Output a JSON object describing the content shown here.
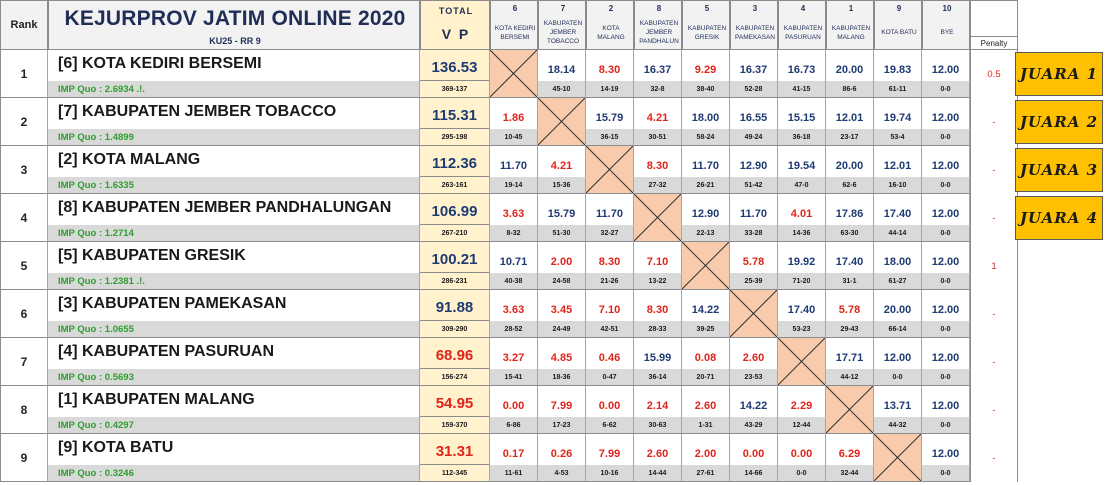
{
  "header": {
    "rank_label": "Rank",
    "title": "KEJURPROV JATIM ONLINE 2020",
    "subtitle": "KU25 - RR 9",
    "total_label": "TOTAL",
    "vp_label": "V P",
    "penalty_label": "Penalty"
  },
  "columns": [
    {
      "num": "6",
      "name1": "KOTA KEDIRI",
      "name2": "BERSEMI"
    },
    {
      "num": "7",
      "name1": "KABUPATEN JEMBER",
      "name2": "TOBACCO"
    },
    {
      "num": "2",
      "name1": "KOTA",
      "name2": "MALANG"
    },
    {
      "num": "8",
      "name1": "KABUPATEN JEMBER",
      "name2": "PANDHALUN"
    },
    {
      "num": "5",
      "name1": "KABUPATEN",
      "name2": "GRESIK"
    },
    {
      "num": "3",
      "name1": "KABUPATEN",
      "name2": "PAMEKASAN"
    },
    {
      "num": "4",
      "name1": "KABUPATEN",
      "name2": "PASURUAN"
    },
    {
      "num": "1",
      "name1": "KABUPATEN",
      "name2": "MALANG"
    },
    {
      "num": "9",
      "name1": "KOTA BATU",
      "name2": ""
    },
    {
      "num": "10",
      "name1": "BYE",
      "name2": ""
    }
  ],
  "rows": [
    {
      "rank": "1",
      "team": "[6] KOTA KEDIRI BERSEMI",
      "quo": "IMP Quo : 2.6934 .!.",
      "vp": "136.53",
      "vp_color": "blue",
      "vp_sub": "369-137",
      "scores": [
        [
          "",
          ""
        ],
        [
          "18.14",
          "45-10"
        ],
        [
          "8.30",
          "14-19"
        ],
        [
          "16.37",
          "32-8"
        ],
        [
          "9.29",
          "38-40"
        ],
        [
          "16.37",
          "52-28"
        ],
        [
          "16.73",
          "41-15"
        ],
        [
          "20.00",
          "86-6"
        ],
        [
          "19.83",
          "61-11"
        ],
        [
          "12.00",
          "0-0"
        ]
      ],
      "colors": [
        "",
        "blue",
        "red",
        "blue",
        "red",
        "blue",
        "blue",
        "blue",
        "blue",
        "blue"
      ],
      "blank": 0,
      "penalty": "0.5",
      "juara": "JUARA 1"
    },
    {
      "rank": "2",
      "team": "[7] KABUPATEN JEMBER TOBACCO",
      "quo": "IMP Quo : 1.4899",
      "vp": "115.31",
      "vp_color": "blue",
      "vp_sub": "295-198",
      "scores": [
        [
          "1.86",
          "10-45"
        ],
        [
          "",
          ""
        ],
        [
          "15.79",
          "36-15"
        ],
        [
          "4.21",
          "30-51"
        ],
        [
          "18.00",
          "58-24"
        ],
        [
          "16.55",
          "49-24"
        ],
        [
          "15.15",
          "36-18"
        ],
        [
          "12.01",
          "23-17"
        ],
        [
          "19.74",
          "53-4"
        ],
        [
          "12.00",
          "0-0"
        ]
      ],
      "colors": [
        "red",
        "",
        "blue",
        "red",
        "blue",
        "blue",
        "blue",
        "blue",
        "blue",
        "blue"
      ],
      "blank": 1,
      "penalty": "-",
      "juara": "JUARA 2"
    },
    {
      "rank": "3",
      "team": "[2] KOTA MALANG",
      "quo": "IMP Quo : 1.6335",
      "vp": "112.36",
      "vp_color": "blue",
      "vp_sub": "263-161",
      "scores": [
        [
          "11.70",
          "19-14"
        ],
        [
          "4.21",
          "15-36"
        ],
        [
          "",
          ""
        ],
        [
          "8.30",
          "27-32"
        ],
        [
          "11.70",
          "26-21"
        ],
        [
          "12.90",
          "51-42"
        ],
        [
          "19.54",
          "47-0"
        ],
        [
          "20.00",
          "62-6"
        ],
        [
          "12.01",
          "16-10"
        ],
        [
          "12.00",
          "0-0"
        ]
      ],
      "colors": [
        "blue",
        "red",
        "",
        "red",
        "blue",
        "blue",
        "blue",
        "blue",
        "blue",
        "blue"
      ],
      "blank": 2,
      "penalty": "-",
      "juara": "JUARA 3"
    },
    {
      "rank": "4",
      "team": "[8] KABUPATEN JEMBER PANDHALUNGAN",
      "quo": "IMP Quo : 1.2714",
      "vp": "106.99",
      "vp_color": "blue",
      "vp_sub": "267-210",
      "scores": [
        [
          "3.63",
          "8-32"
        ],
        [
          "15.79",
          "51-30"
        ],
        [
          "11.70",
          "32-27"
        ],
        [
          "",
          ""
        ],
        [
          "12.90",
          "22-13"
        ],
        [
          "11.70",
          "33-28"
        ],
        [
          "4.01",
          "14-36"
        ],
        [
          "17.86",
          "63-30"
        ],
        [
          "17.40",
          "44-14"
        ],
        [
          "12.00",
          "0-0"
        ]
      ],
      "colors": [
        "red",
        "blue",
        "blue",
        "",
        "blue",
        "blue",
        "red",
        "blue",
        "blue",
        "blue"
      ],
      "blank": 3,
      "penalty": "-",
      "juara": "JUARA 4"
    },
    {
      "rank": "5",
      "team": "[5] KABUPATEN GRESIK",
      "quo": "IMP Quo : 1.2381 .!.",
      "vp": "100.21",
      "vp_color": "blue",
      "vp_sub": "286-231",
      "scores": [
        [
          "10.71",
          "40-38"
        ],
        [
          "2.00",
          "24-58"
        ],
        [
          "8.30",
          "21-26"
        ],
        [
          "7.10",
          "13-22"
        ],
        [
          "",
          ""
        ],
        [
          "5.78",
          "25-39"
        ],
        [
          "19.92",
          "71-20"
        ],
        [
          "17.40",
          "31-1"
        ],
        [
          "18.00",
          "61-27"
        ],
        [
          "12.00",
          "0-0"
        ]
      ],
      "colors": [
        "blue",
        "red",
        "red",
        "red",
        "",
        "red",
        "blue",
        "blue",
        "blue",
        "blue"
      ],
      "blank": 4,
      "penalty": "1",
      "juara": ""
    },
    {
      "rank": "6",
      "team": "[3] KABUPATEN PAMEKASAN",
      "quo": "IMP Quo : 1.0655",
      "vp": "91.88",
      "vp_color": "blue",
      "vp_sub": "309-290",
      "scores": [
        [
          "3.63",
          "28-52"
        ],
        [
          "3.45",
          "24-49"
        ],
        [
          "7.10",
          "42-51"
        ],
        [
          "8.30",
          "28-33"
        ],
        [
          "14.22",
          "39-25"
        ],
        [
          "",
          ""
        ],
        [
          "17.40",
          "53-23"
        ],
        [
          "5.78",
          "29-43"
        ],
        [
          "20.00",
          "66-14"
        ],
        [
          "12.00",
          "0-0"
        ]
      ],
      "colors": [
        "red",
        "red",
        "red",
        "red",
        "blue",
        "",
        "blue",
        "red",
        "blue",
        "blue"
      ],
      "blank": 5,
      "penalty": "-",
      "juara": ""
    },
    {
      "rank": "7",
      "team": "[4] KABUPATEN PASURUAN",
      "quo": "IMP Quo : 0.5693",
      "vp": "68.96",
      "vp_color": "red",
      "vp_sub": "156-274",
      "scores": [
        [
          "3.27",
          "15-41"
        ],
        [
          "4.85",
          "18-36"
        ],
        [
          "0.46",
          "0-47"
        ],
        [
          "15.99",
          "36-14"
        ],
        [
          "0.08",
          "20-71"
        ],
        [
          "2.60",
          "23-53"
        ],
        [
          "",
          ""
        ],
        [
          "17.71",
          "44-12"
        ],
        [
          "12.00",
          "0-0"
        ],
        [
          "12.00",
          "0-0"
        ]
      ],
      "colors": [
        "red",
        "red",
        "red",
        "blue",
        "red",
        "red",
        "",
        "blue",
        "blue",
        "blue"
      ],
      "blank": 6,
      "penalty": "-",
      "juara": ""
    },
    {
      "rank": "8",
      "team": "[1] KABUPATEN MALANG",
      "quo": "IMP Quo : 0.4297",
      "vp": "54.95",
      "vp_color": "red",
      "vp_sub": "159-370",
      "scores": [
        [
          "0.00",
          "6-86"
        ],
        [
          "7.99",
          "17-23"
        ],
        [
          "0.00",
          "6-62"
        ],
        [
          "2.14",
          "30-63"
        ],
        [
          "2.60",
          "1-31"
        ],
        [
          "14.22",
          "43-29"
        ],
        [
          "2.29",
          "12-44"
        ],
        [
          "",
          ""
        ],
        [
          "13.71",
          "44-32"
        ],
        [
          "12.00",
          "0-0"
        ]
      ],
      "colors": [
        "red",
        "red",
        "red",
        "red",
        "red",
        "blue",
        "red",
        "",
        "blue",
        "blue"
      ],
      "blank": 7,
      "penalty": "-",
      "juara": ""
    },
    {
      "rank": "9",
      "team": "[9] KOTA BATU",
      "quo": "IMP Quo : 0.3246",
      "vp": "31.31",
      "vp_color": "red",
      "vp_sub": "112-345",
      "scores": [
        [
          "0.17",
          "11-61"
        ],
        [
          "0.26",
          "4-53"
        ],
        [
          "7.99",
          "10-16"
        ],
        [
          "2.60",
          "14-44"
        ],
        [
          "2.00",
          "27-61"
        ],
        [
          "0.00",
          "14-66"
        ],
        [
          "0.00",
          "0-0"
        ],
        [
          "6.29",
          "32-44"
        ],
        [
          "",
          ""
        ],
        [
          "12.00",
          "0-0"
        ]
      ],
      "colors": [
        "red",
        "red",
        "red",
        "red",
        "red",
        "red",
        "red",
        "red",
        "",
        "blue"
      ],
      "blank": 8,
      "penalty": "-",
      "juara": ""
    }
  ],
  "colors": {
    "vp_bg": "#fff2cc",
    "blank_fill": "#f8cbad",
    "juara_bg": "#ffc000",
    "sub_bg": "#d9d9d9",
    "quo_green": "#2e9e2e",
    "red": "#e0241b",
    "blue": "#1f3b73"
  }
}
